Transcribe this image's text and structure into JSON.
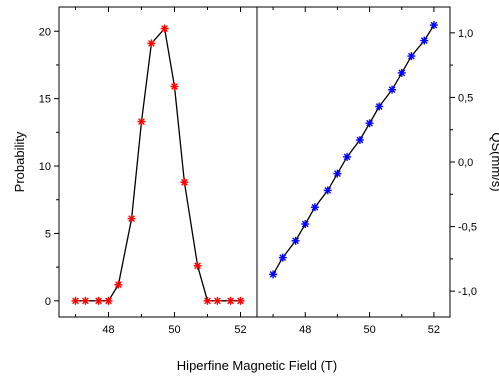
{
  "chart_data": [
    {
      "type": "line",
      "panel": "left",
      "ylabel": "Probability",
      "xlabel": "Hiperfine Magnetic Field (T)",
      "xlim": [
        46.5,
        52.5
      ],
      "ylim": [
        -1.2,
        21.8
      ],
      "xticks": [
        48,
        50,
        52
      ],
      "xtick_labels": [
        "48",
        "50",
        "52"
      ],
      "yticks": [
        0,
        5,
        10,
        15,
        20
      ],
      "ytick_labels": [
        "0",
        "5",
        "10",
        "15",
        "20"
      ],
      "grid": false,
      "legend": "none",
      "series": [
        {
          "marker": "asterisk",
          "color": "#ff0000",
          "x": [
            47.0,
            47.3,
            47.7,
            48.0,
            48.3,
            48.7,
            49.0,
            49.3,
            49.7,
            50.0,
            50.3,
            50.7,
            51.0,
            51.3,
            51.7,
            52.0
          ],
          "y": [
            0,
            0,
            0,
            0,
            1.2,
            6.1,
            13.3,
            19.1,
            20.2,
            15.9,
            8.8,
            2.6,
            0,
            0,
            0,
            0
          ]
        }
      ]
    },
    {
      "type": "line",
      "panel": "right",
      "ylabel": "QS(mm/s)",
      "xlabel": "Hiperfine Magnetic Field (T)",
      "xlim": [
        46.5,
        52.5
      ],
      "ylim": [
        -1.2,
        1.2
      ],
      "xticks": [
        48,
        50,
        52
      ],
      "xtick_labels": [
        "48",
        "50",
        "52"
      ],
      "yticks": [
        -1.0,
        -0.5,
        0.0,
        0.5,
        1.0
      ],
      "ytick_labels": [
        "-1,0",
        "-0,5",
        "0,0",
        "0,5",
        "1,0"
      ],
      "y_axis_side": "right",
      "grid": false,
      "legend": "none",
      "series": [
        {
          "marker": "asterisk",
          "color": "#0000ff",
          "x": [
            47.0,
            47.3,
            47.7,
            48.0,
            48.3,
            48.7,
            49.0,
            49.3,
            49.7,
            50.0,
            50.3,
            50.7,
            51.0,
            51.3,
            51.7,
            52.0
          ],
          "y": [
            -0.87,
            -0.74,
            -0.61,
            -0.48,
            -0.35,
            -0.22,
            -0.09,
            0.04,
            0.17,
            0.3,
            0.43,
            0.56,
            0.69,
            0.82,
            0.94,
            1.06
          ]
        }
      ]
    }
  ]
}
